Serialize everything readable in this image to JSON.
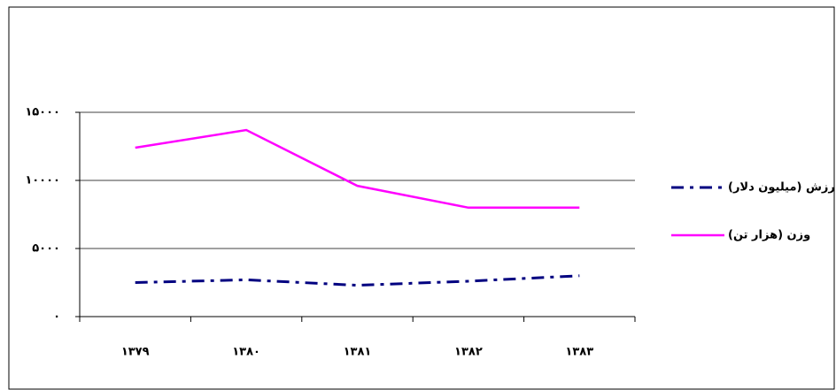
{
  "chart_data": {
    "type": "line",
    "categories": [
      "۱۳۷۹",
      "۱۳۸۰",
      "۱۳۸۱",
      "۱۳۸۲",
      "۱۳۸۳"
    ],
    "series": [
      {
        "name": "رزش (میلیون دلار)",
        "color": "#000080",
        "dash": true,
        "values": [
          2500,
          2700,
          2300,
          2600,
          3000
        ]
      },
      {
        "name": "وزن (هزار تن)",
        "color": "#ff00ff",
        "dash": false,
        "values": [
          12400,
          13700,
          9600,
          8000,
          8000
        ]
      }
    ],
    "ylim": [
      0,
      15000
    ],
    "yticks": [
      {
        "value": 0,
        "label": "۰"
      },
      {
        "value": 5000,
        "label": "۵۰۰۰"
      },
      {
        "value": 10000,
        "label": "۱۰۰۰۰"
      },
      {
        "value": 15000,
        "label": "۱۵۰۰۰"
      }
    ],
    "grid": true,
    "legend": "right"
  }
}
